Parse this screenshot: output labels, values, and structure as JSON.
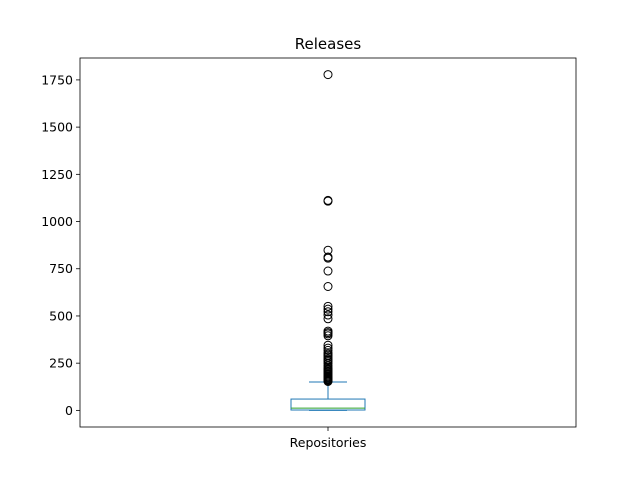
{
  "chart_data": {
    "type": "box",
    "title": "Releases",
    "xlabel": "",
    "ylabel": "",
    "categories": [
      "Repositories"
    ],
    "ylim": [
      -88,
      1866
    ],
    "yticks": [
      0,
      250,
      500,
      750,
      1000,
      1250,
      1500,
      1750
    ],
    "grid": false,
    "box": {
      "whisker_low": 0,
      "q1": 2,
      "median": 12,
      "q3": 60,
      "whisker_high": 150
    },
    "fliers": [
      1778,
      1112,
      1108,
      848,
      812,
      806,
      738,
      656,
      551,
      536,
      522,
      505,
      485,
      420,
      412,
      405,
      395,
      345,
      330,
      318,
      305,
      298,
      290,
      282,
      272,
      266,
      258,
      248,
      238,
      230,
      222,
      216,
      210,
      204,
      198,
      192,
      186,
      180,
      175,
      170,
      165,
      161,
      157,
      153
    ],
    "colors": {
      "box": "#1f77b4",
      "median": "#2ca02c",
      "flier_edge": "#000000",
      "axes": "#000000"
    }
  }
}
